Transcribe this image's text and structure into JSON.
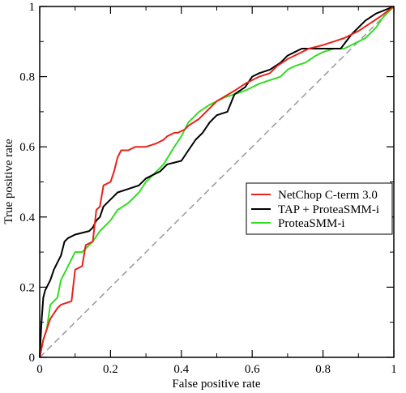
{
  "chart_data": {
    "type": "line",
    "title": "",
    "xlabel": "False positive rate",
    "ylabel": "True positive rate",
    "xlim": [
      0,
      1
    ],
    "ylim": [
      0,
      1
    ],
    "grid": false,
    "legend_position": "right",
    "x_ticks": [
      "0",
      "0.2",
      "0.4",
      "0.6",
      "0.8",
      "1"
    ],
    "y_ticks": [
      "0",
      "0.2",
      "0.4",
      "0.6",
      "0.8",
      "1"
    ],
    "reference_line": {
      "x": [
        0,
        1
      ],
      "y": [
        0,
        1
      ],
      "color": "#999999",
      "style": "dashed"
    },
    "series": [
      {
        "name": "NetChop C-term 3.0",
        "color": "#e8231c",
        "x": [
          0,
          0.01,
          0.02,
          0.03,
          0.05,
          0.06,
          0.09,
          0.1,
          0.12,
          0.13,
          0.15,
          0.16,
          0.17,
          0.18,
          0.2,
          0.21,
          0.22,
          0.23,
          0.25,
          0.27,
          0.29,
          0.3,
          0.33,
          0.35,
          0.36,
          0.38,
          0.39,
          0.41,
          0.42,
          0.45,
          0.47,
          0.5,
          0.55,
          0.58,
          0.6,
          0.62,
          0.65,
          0.67,
          0.7,
          0.72,
          0.74,
          0.76,
          0.8,
          0.83,
          0.86,
          0.9,
          0.93,
          0.96,
          1
        ],
        "y": [
          0,
          0.05,
          0.08,
          0.11,
          0.14,
          0.15,
          0.16,
          0.25,
          0.26,
          0.32,
          0.33,
          0.42,
          0.43,
          0.49,
          0.5,
          0.53,
          0.57,
          0.59,
          0.59,
          0.6,
          0.6,
          0.6,
          0.61,
          0.62,
          0.63,
          0.64,
          0.64,
          0.65,
          0.66,
          0.68,
          0.7,
          0.73,
          0.76,
          0.78,
          0.79,
          0.8,
          0.81,
          0.83,
          0.85,
          0.86,
          0.87,
          0.88,
          0.89,
          0.9,
          0.91,
          0.93,
          0.95,
          0.97,
          1
        ]
      },
      {
        "name": "TAP + ProteaSMM-i",
        "color": "#000000",
        "x": [
          0,
          0.005,
          0.01,
          0.015,
          0.02,
          0.03,
          0.04,
          0.05,
          0.06,
          0.07,
          0.08,
          0.1,
          0.14,
          0.15,
          0.16,
          0.17,
          0.18,
          0.2,
          0.21,
          0.22,
          0.25,
          0.28,
          0.3,
          0.32,
          0.34,
          0.36,
          0.4,
          0.42,
          0.44,
          0.46,
          0.48,
          0.5,
          0.53,
          0.55,
          0.58,
          0.6,
          0.62,
          0.65,
          0.68,
          0.7,
          0.72,
          0.74,
          0.76,
          0.8,
          0.85,
          0.88,
          0.92,
          0.95,
          1
        ],
        "y": [
          0,
          0.1,
          0.17,
          0.19,
          0.2,
          0.22,
          0.25,
          0.27,
          0.29,
          0.33,
          0.34,
          0.35,
          0.36,
          0.37,
          0.39,
          0.4,
          0.43,
          0.45,
          0.46,
          0.47,
          0.48,
          0.49,
          0.51,
          0.52,
          0.53,
          0.55,
          0.56,
          0.59,
          0.62,
          0.64,
          0.67,
          0.69,
          0.7,
          0.75,
          0.77,
          0.8,
          0.81,
          0.82,
          0.84,
          0.86,
          0.87,
          0.88,
          0.88,
          0.88,
          0.88,
          0.92,
          0.96,
          0.98,
          1
        ]
      },
      {
        "name": "ProteaSMM-i",
        "color": "#33dd22",
        "x": [
          0,
          0.01,
          0.02,
          0.03,
          0.05,
          0.06,
          0.08,
          0.1,
          0.12,
          0.15,
          0.17,
          0.2,
          0.22,
          0.25,
          0.28,
          0.3,
          0.32,
          0.35,
          0.38,
          0.4,
          0.42,
          0.45,
          0.48,
          0.5,
          0.52,
          0.55,
          0.58,
          0.6,
          0.62,
          0.65,
          0.68,
          0.7,
          0.72,
          0.75,
          0.78,
          0.8,
          0.83,
          0.86,
          0.88,
          0.9,
          0.92,
          0.95,
          0.97,
          1
        ],
        "y": [
          0,
          0.05,
          0.08,
          0.15,
          0.17,
          0.22,
          0.26,
          0.3,
          0.3,
          0.33,
          0.36,
          0.39,
          0.42,
          0.44,
          0.47,
          0.5,
          0.52,
          0.55,
          0.6,
          0.63,
          0.67,
          0.7,
          0.72,
          0.73,
          0.74,
          0.75,
          0.76,
          0.77,
          0.78,
          0.79,
          0.8,
          0.82,
          0.83,
          0.84,
          0.86,
          0.87,
          0.88,
          0.88,
          0.89,
          0.9,
          0.91,
          0.94,
          0.97,
          1
        ]
      }
    ]
  }
}
